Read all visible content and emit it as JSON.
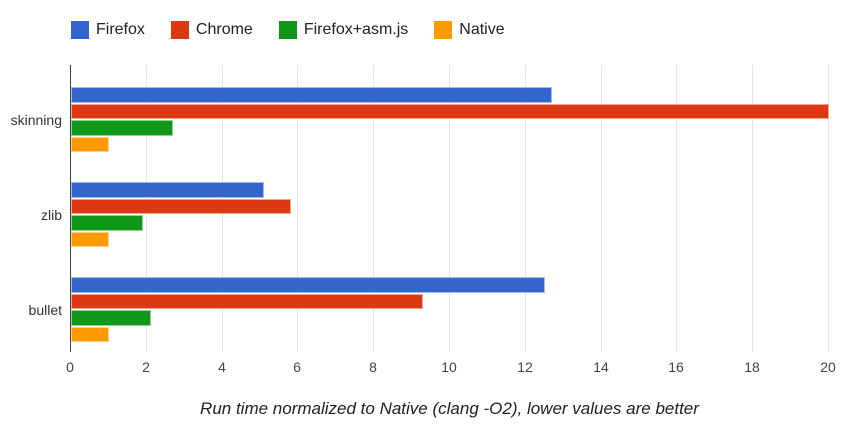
{
  "chart_data": {
    "type": "bar",
    "orientation": "horizontal",
    "title": "",
    "caption": "Run time normalized to Native (clang -O2), lower values are better",
    "categories": [
      "skinning",
      "zlib",
      "bullet"
    ],
    "series": [
      {
        "name": "Firefox",
        "color": "#3366CC",
        "values": [
          12.7,
          5.1,
          12.5
        ]
      },
      {
        "name": "Chrome",
        "color": "#DC3912",
        "values": [
          20.0,
          5.8,
          9.3
        ]
      },
      {
        "name": "Firefox+asm.js",
        "color": "#109618",
        "values": [
          2.7,
          1.9,
          2.1
        ]
      },
      {
        "name": "Native",
        "color": "#FF9900",
        "values": [
          1.0,
          1.0,
          1.0
        ]
      }
    ],
    "x_ticks": [
      0,
      2,
      4,
      6,
      8,
      10,
      12,
      14,
      16,
      18,
      20
    ],
    "xlim": [
      0,
      20
    ],
    "grid": true,
    "legend_position": "top"
  },
  "colors": {
    "background": "#ffffff",
    "gridline": "#e6e6e6",
    "axis": "#424242",
    "tick_label": "#444444",
    "category_label": "#333333",
    "text": "#212121"
  }
}
